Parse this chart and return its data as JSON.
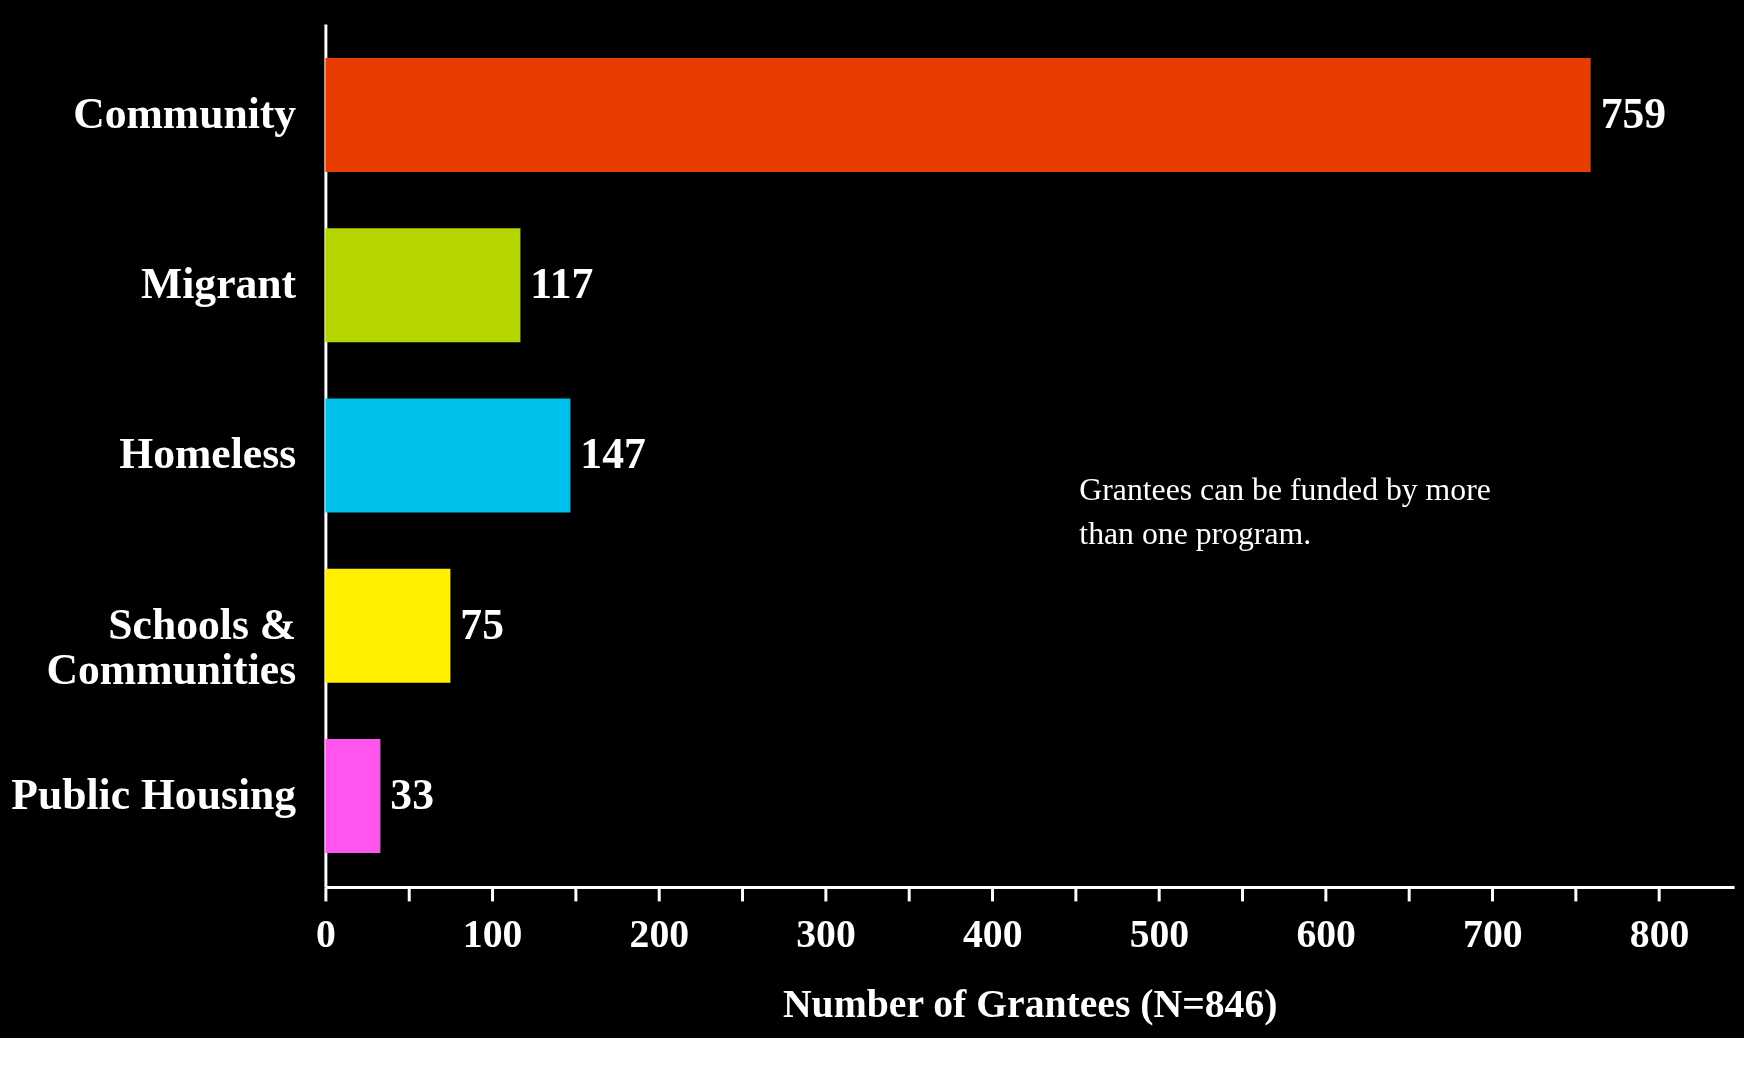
{
  "chart_data": {
    "type": "bar",
    "orientation": "horizontal",
    "xlabel": "Number of Grantees (N=846)",
    "categories": [
      "Community",
      "Migrant",
      "Homeless",
      "Schools & Communities",
      "Public Housing"
    ],
    "values": [
      759,
      117,
      147,
      75,
      33
    ],
    "colors": [
      "#e83c00",
      "#b5d400",
      "#00c0ec",
      "#fff000",
      "#ff55ee"
    ],
    "xlim": [
      0,
      845
    ],
    "xticks": [
      0,
      {
        "value": 50,
        "label": null
      },
      100,
      {
        "value": 150,
        "label": null
      },
      200,
      {
        "value": 250,
        "label": null
      },
      300,
      {
        "value": 350,
        "label": null
      },
      400,
      {
        "value": 450,
        "label": null
      },
      500,
      {
        "value": 550,
        "label": null
      },
      600,
      {
        "value": 650,
        "label": null
      },
      700,
      {
        "value": 750,
        "label": null
      },
      800
    ],
    "data_labels": true,
    "grid": false,
    "annotations": [
      "Grantees can be funded by more than one program."
    ]
  }
}
